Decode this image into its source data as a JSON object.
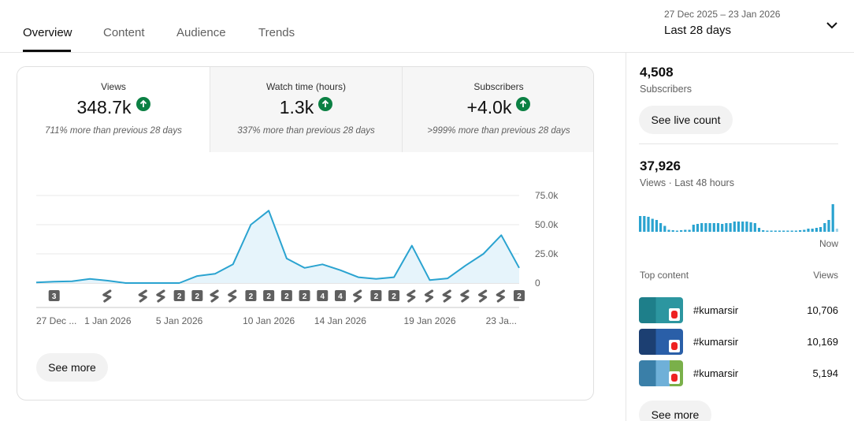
{
  "tabs": [
    {
      "label": "Overview"
    },
    {
      "label": "Content"
    },
    {
      "label": "Audience"
    },
    {
      "label": "Trends"
    }
  ],
  "date_range": {
    "dates": "27 Dec 2025 – 23 Jan 2026",
    "label": "Last 28 days"
  },
  "metrics": [
    {
      "label": "Views",
      "value": "348.7k",
      "change": "711% more than previous 28 days"
    },
    {
      "label": "Watch time (hours)",
      "value": "1.3k",
      "change": "337% more than previous 28 days"
    },
    {
      "label": "Subscribers",
      "value": "+4.0k",
      "change": ">999% more than previous 28 days"
    }
  ],
  "chart_data": {
    "type": "area",
    "series": [
      {
        "values": [
          500,
          1200,
          1500,
          3500,
          2000,
          0,
          0,
          0,
          0,
          6000,
          8000,
          16000,
          50000,
          62000,
          21000,
          13000,
          16000,
          11000,
          5000,
          3500,
          5000,
          32000,
          2500,
          4000,
          15000,
          25000,
          41000,
          13000
        ]
      }
    ],
    "ylim": [
      0,
      75000
    ],
    "y_ticks": [
      "75.0k",
      "50.0k",
      "25.0k",
      "0"
    ],
    "x_tick_labels": [
      "27 Dec ...",
      "1 Jan 2026",
      "5 Jan 2026",
      "10 Jan 2026",
      "14 Jan 2026",
      "19 Jan 2026",
      "23 Ja..."
    ],
    "x_tick_days": [
      0,
      4,
      8,
      13,
      17,
      22,
      26
    ],
    "line_color": "#2aa3d0",
    "fill_color": "#e6f4fb",
    "upload_markers": [
      {
        "day": 1,
        "kind": "count",
        "label": "3"
      },
      {
        "day": 4,
        "kind": "shorts",
        "label": ""
      },
      {
        "day": 6,
        "kind": "shorts",
        "label": ""
      },
      {
        "day": 7,
        "kind": "shorts",
        "label": ""
      },
      {
        "day": 8,
        "kind": "count",
        "label": "2"
      },
      {
        "day": 9,
        "kind": "count",
        "label": "2"
      },
      {
        "day": 10,
        "kind": "shorts",
        "label": ""
      },
      {
        "day": 11,
        "kind": "shorts",
        "label": ""
      },
      {
        "day": 12,
        "kind": "count",
        "label": "2"
      },
      {
        "day": 13,
        "kind": "count",
        "label": "2"
      },
      {
        "day": 14,
        "kind": "count",
        "label": "2"
      },
      {
        "day": 15,
        "kind": "count",
        "label": "2"
      },
      {
        "day": 16,
        "kind": "count",
        "label": "4"
      },
      {
        "day": 17,
        "kind": "count",
        "label": "4"
      },
      {
        "day": 18,
        "kind": "shorts",
        "label": ""
      },
      {
        "day": 19,
        "kind": "count",
        "label": "2"
      },
      {
        "day": 20,
        "kind": "count",
        "label": "2"
      },
      {
        "day": 21,
        "kind": "shorts",
        "label": ""
      },
      {
        "day": 22,
        "kind": "shorts",
        "label": ""
      },
      {
        "day": 23,
        "kind": "shorts",
        "label": ""
      },
      {
        "day": 24,
        "kind": "shorts",
        "label": ""
      },
      {
        "day": 25,
        "kind": "shorts",
        "label": ""
      },
      {
        "day": 26,
        "kind": "shorts",
        "label": ""
      },
      {
        "day": 27,
        "kind": "count",
        "label": "2"
      }
    ]
  },
  "see_more_label": "See more",
  "realtime": {
    "subscribers_count": "4,508",
    "subscribers_label": "Subscribers",
    "live_count_button": "See live count",
    "views_count": "37,926",
    "views_label": "Views · Last 48 hours",
    "hourly_bars": [
      0.4,
      0.4,
      0.38,
      0.33,
      0.3,
      0.22,
      0.15,
      0.05,
      0.04,
      0.03,
      0.04,
      0.05,
      0.05,
      0.18,
      0.2,
      0.22,
      0.22,
      0.22,
      0.22,
      0.22,
      0.2,
      0.22,
      0.22,
      0.26,
      0.26,
      0.26,
      0.26,
      0.24,
      0.22,
      0.1,
      0.04,
      0.03,
      0.03,
      0.03,
      0.03,
      0.03,
      0.03,
      0.03,
      0.03,
      0.04,
      0.05,
      0.08,
      0.08,
      0.1,
      0.12,
      0.22,
      0.3,
      0.7,
      0.08
    ],
    "bar_color": "#2aa3d0",
    "now_label": "Now",
    "top_content_label": "Top content",
    "views_col_label": "Views",
    "top_content": [
      {
        "title": "#kumarsir",
        "views": "10,706"
      },
      {
        "title": "#kumarsir",
        "views": "10,169"
      },
      {
        "title": "#kumarsir",
        "views": "5,194"
      }
    ],
    "see_more_label": "See more"
  },
  "colors": {
    "accent": "#0f0f0f",
    "positive": "#0b8043",
    "chart_line": "#2aa3d0"
  }
}
